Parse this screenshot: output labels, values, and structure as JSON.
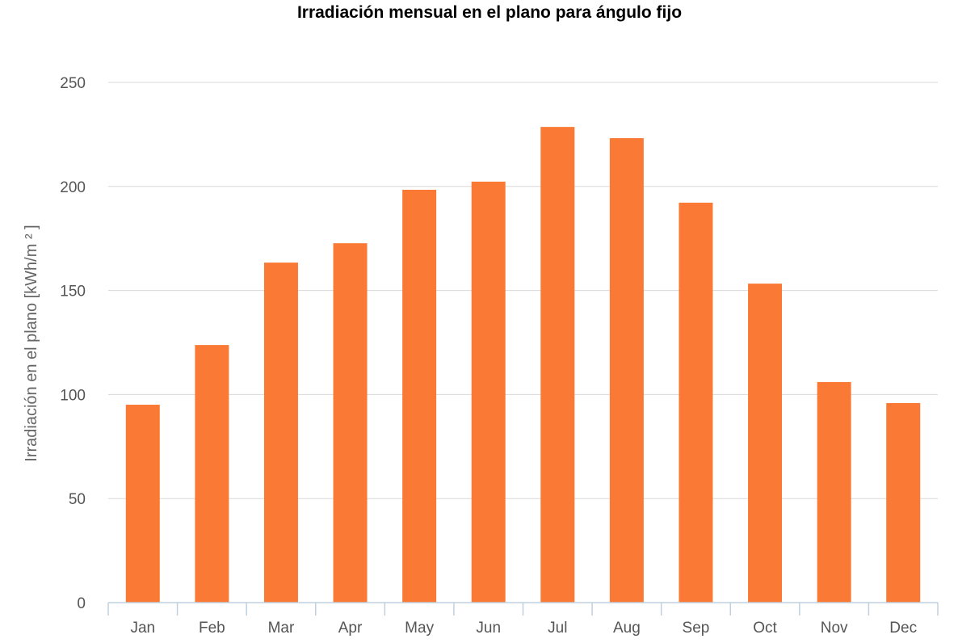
{
  "chart_data": {
    "type": "bar",
    "title": "Irradiación mensual en el plano para ángulo fijo",
    "xlabel": "",
    "ylabel": "Irradiación en el plano [kWh/m ² ]",
    "categories": [
      "Jan",
      "Feb",
      "Mar",
      "Apr",
      "May",
      "Jun",
      "Jul",
      "Aug",
      "Sep",
      "Oct",
      "Nov",
      "Dec"
    ],
    "values": [
      95.1,
      123.8,
      163.4,
      172.7,
      198.4,
      202.3,
      228.6,
      223.2,
      192.2,
      153.3,
      106.0,
      95.9
    ],
    "ylim": [
      0,
      250
    ],
    "yticks": [
      0,
      50,
      100,
      150,
      200,
      250
    ],
    "grid": true,
    "legend": "none",
    "bar_color": "#fa7a35"
  }
}
